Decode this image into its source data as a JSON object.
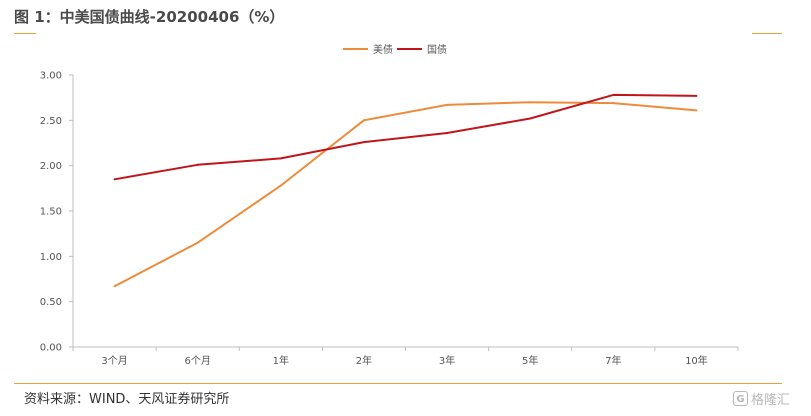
{
  "header": {
    "title": "图 1：中美国债曲线-20200406（%）",
    "accent_color": "#e8a23a"
  },
  "footer": {
    "source": "资料来源：WIND、天风证券研究所",
    "watermark": "格隆汇",
    "watermark_logo": "G"
  },
  "chart_data": {
    "type": "line",
    "categories": [
      "3个月",
      "6个月",
      "1年",
      "2年",
      "3年",
      "5年",
      "7年",
      "10年"
    ],
    "series": [
      {
        "name": "美债",
        "color": "#ed8b3c",
        "values": [
          0.67,
          1.15,
          1.78,
          2.5,
          2.67,
          2.7,
          2.69,
          2.61
        ]
      },
      {
        "name": "国债",
        "color": "#c0151b",
        "values": [
          1.85,
          2.01,
          2.08,
          2.26,
          2.36,
          2.52,
          2.78,
          2.77
        ]
      }
    ],
    "yticks": [
      "0.00",
      "0.50",
      "1.00",
      "1.50",
      "2.00",
      "2.50",
      "3.00"
    ],
    "ylim": [
      0,
      3
    ],
    "grid": false,
    "legend_position": "top-center"
  }
}
